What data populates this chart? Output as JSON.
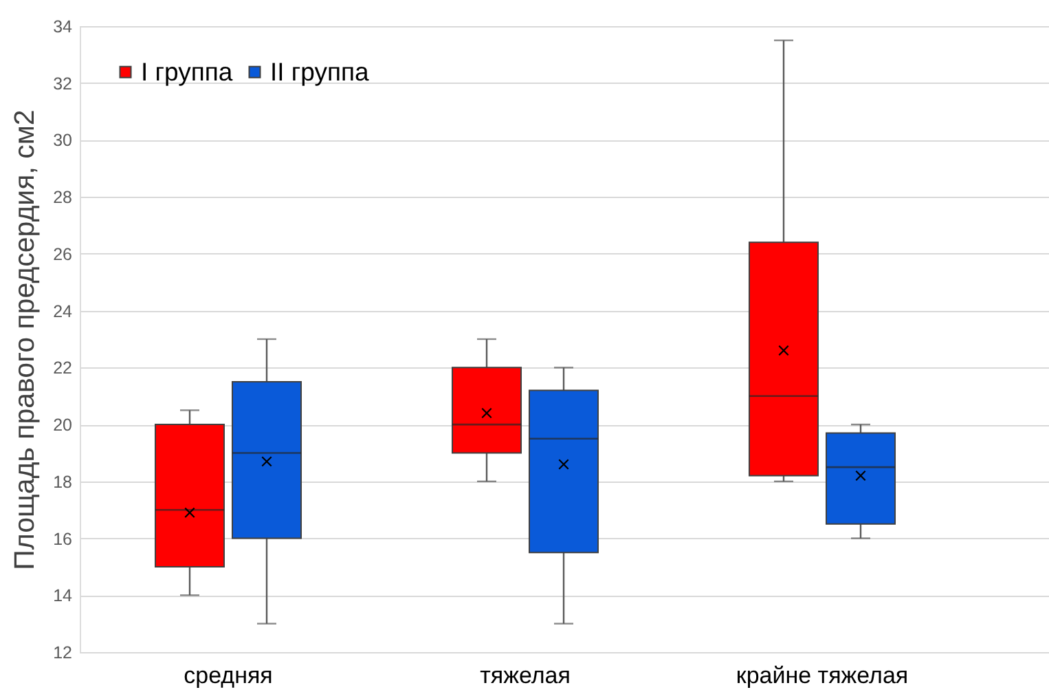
{
  "chart_data": {
    "type": "box",
    "ylabel": "Площадь правого предсердия, см2",
    "categories": [
      "средняя",
      "тяжелая",
      "крайне тяжелая"
    ],
    "series": [
      {
        "name": "I группа",
        "color": "#ff0000",
        "boxes": [
          {
            "low": 14,
            "q1": 15,
            "median": 17,
            "q3": 20,
            "high": 20.5,
            "mean": 16.9
          },
          {
            "low": 18,
            "q1": 19,
            "median": 20,
            "q3": 22,
            "high": 23,
            "mean": 20.4
          },
          {
            "low": 18,
            "q1": 18.2,
            "median": 21,
            "q3": 26.4,
            "high": 33.5,
            "mean": 22.6
          }
        ]
      },
      {
        "name": "II группа",
        "color": "#0a5ad9",
        "boxes": [
          {
            "low": 13,
            "q1": 16,
            "median": 19,
            "q3": 21.5,
            "high": 23,
            "mean": 18.7
          },
          {
            "low": 13,
            "q1": 15.5,
            "median": 19.5,
            "q3": 21.2,
            "high": 22,
            "mean": 18.6
          },
          {
            "low": 16,
            "q1": 16.5,
            "median": 18.5,
            "q3": 19.7,
            "high": 20,
            "mean": 18.2
          }
        ]
      }
    ],
    "ylim": [
      12,
      34
    ],
    "yticks": [
      12,
      14,
      16,
      18,
      20,
      22,
      24,
      26,
      28,
      30,
      32,
      34
    ],
    "grid": "y",
    "legend": "top left"
  }
}
